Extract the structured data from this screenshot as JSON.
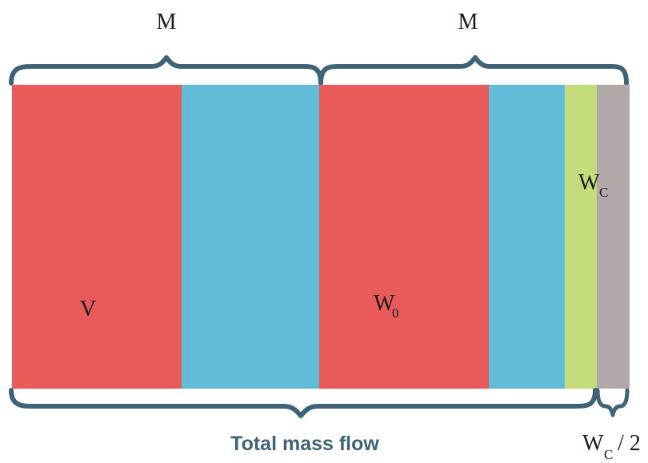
{
  "colors": {
    "red": "#E85B5A",
    "blue": "#63BCD7",
    "green": "#C3DB7A",
    "gray": "#B1A9A7",
    "brace": "#3F6277",
    "caption": "#3F6277",
    "text": "#1A1A1A"
  },
  "labels": {
    "top_left": "M",
    "top_right": "M",
    "v": "V",
    "w0_main": "W",
    "w0_sub": "0",
    "wc_main": "W",
    "wc_sub": "C",
    "caption": "Total mass flow",
    "half_main": "W",
    "half_sub": "C",
    "half_suffix": "/ 2"
  }
}
